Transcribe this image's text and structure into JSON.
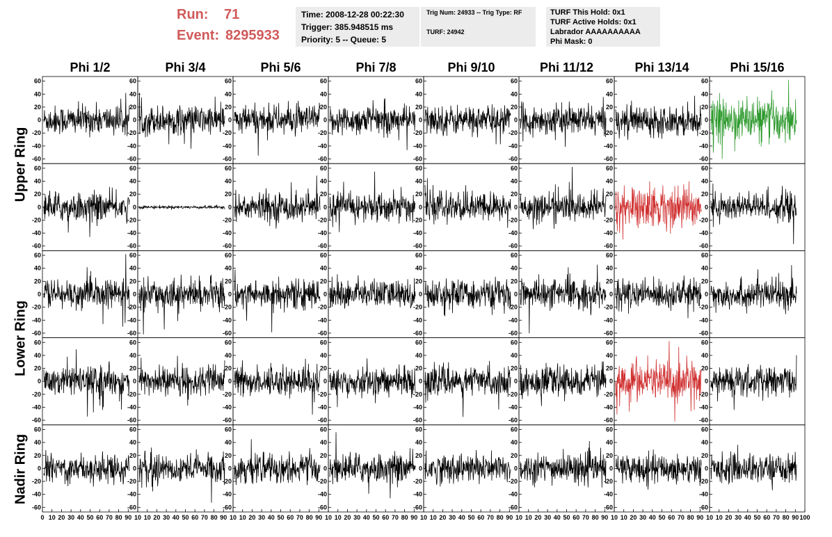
{
  "header": {
    "run_label": "Run:",
    "run_value": "71",
    "event_label": "Event:",
    "event_value": "8295933"
  },
  "info_box_1": {
    "time": "Time: 2008-12-28 00:22:30",
    "trigger": "Trigger: 385.948515 ms",
    "priority": "Priority: 5 -- Queue: 5"
  },
  "info_box_2": {
    "trig": "Trig Num: 24933 -- Trig Type: RF",
    "turf": "TURF: 24942"
  },
  "info_box_3": {
    "hold": "TURF This Hold: 0x1",
    "active_holds": "TURF Active Holds: 0x1",
    "labrador": "Labrador AAAAAAAAAA",
    "phi_mask": "Phi Mask: 0"
  },
  "chart_data": {
    "type": "line",
    "columns": [
      "Phi 1/2",
      "Phi 3/4",
      "Phi 5/6",
      "Phi 7/8",
      "Phi 9/10",
      "Phi 11/12",
      "Phi 13/14",
      "Phi 15/16"
    ],
    "row_labels": [
      "Upper Ring",
      "Lower Ring",
      "Nadir Ring"
    ],
    "ylim": [
      -65,
      65
    ],
    "y_ticks": [
      -60,
      -40,
      -20,
      0,
      20,
      40,
      60
    ],
    "y_tick_labels": [
      "-60",
      "-40",
      "-20",
      "0",
      "20",
      "40",
      "60"
    ],
    "xlim": [
      0,
      100
    ],
    "x_ticks": [
      0,
      10,
      20,
      30,
      40,
      50,
      60,
      70,
      80,
      90
    ],
    "x_tick_labels": [
      "0",
      "10",
      "20",
      "30",
      "40",
      "50",
      "60",
      "70",
      "80",
      "90"
    ],
    "x_tick_labels_first": [
      "0",
      "10",
      "20",
      "30",
      "40",
      "50",
      "60",
      "70",
      "80",
      "90",
      "10"
    ],
    "x_tick_labels_mid": [
      "10",
      "20",
      "30",
      "40",
      "50",
      "60",
      "70",
      "80",
      "90",
      "10"
    ],
    "x_tick_labels_last": [
      "10",
      "20",
      "30",
      "40",
      "50",
      "60",
      "70",
      "80",
      "90",
      "100"
    ],
    "panels_highlighted": [
      {
        "row": 0,
        "col": 7,
        "color": "#2e9a2e"
      },
      {
        "row": 1,
        "col": 6,
        "color": "#d03030"
      },
      {
        "row": 3,
        "col": 6,
        "color": "#d03030"
      }
    ],
    "panels_flat": [
      {
        "row": 1,
        "col": 1
      }
    ],
    "trace_color": "#000000",
    "grid": false
  }
}
